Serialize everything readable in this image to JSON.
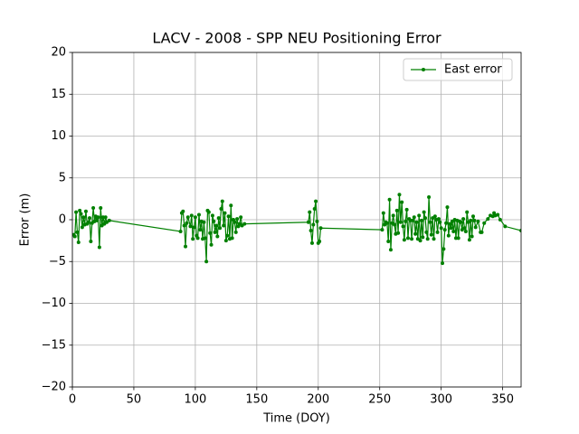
{
  "chart_data": {
    "type": "line",
    "title": "LACV - 2008 - SPP NEU Positioning Error",
    "xlabel": "Time (DOY)",
    "ylabel": "Error (m)",
    "xlim": [
      0,
      365
    ],
    "ylim": [
      -20,
      20
    ],
    "xticks": [
      0,
      50,
      100,
      150,
      200,
      250,
      300,
      350
    ],
    "yticks": [
      {
        "value": -20,
        "label": "−20"
      },
      {
        "value": -15,
        "label": "−15"
      },
      {
        "value": -10,
        "label": "−10"
      },
      {
        "value": -5,
        "label": "−5"
      },
      0,
      5,
      10,
      15,
      20
    ],
    "grid": true,
    "legend": "upper right",
    "x": [
      1,
      2,
      3,
      4,
      5,
      6,
      7,
      8,
      9,
      10,
      11,
      12,
      13,
      14,
      15,
      16,
      17,
      18,
      19,
      20,
      21,
      22,
      23,
      24,
      25,
      26,
      27,
      28,
      30,
      88,
      89,
      90,
      91,
      92,
      93,
      94,
      96,
      97,
      98,
      99,
      100,
      101,
      102,
      103,
      104,
      105,
      106,
      107,
      108,
      109,
      110,
      111,
      112,
      113,
      114,
      115,
      116,
      117,
      118,
      119,
      120,
      121,
      122,
      123,
      124,
      125,
      126,
      127,
      128,
      129,
      130,
      131,
      132,
      133,
      134,
      135,
      136,
      137,
      138,
      140,
      192,
      193,
      194,
      195,
      196,
      197,
      198,
      199,
      200,
      201,
      202,
      252,
      253,
      254,
      255,
      256,
      257,
      258,
      259,
      260,
      261,
      262,
      263,
      264,
      265,
      266,
      267,
      268,
      269,
      270,
      271,
      272,
      273,
      274,
      275,
      276,
      277,
      278,
      279,
      280,
      281,
      282,
      283,
      284,
      285,
      286,
      287,
      288,
      289,
      290,
      291,
      292,
      293,
      294,
      295,
      296,
      297,
      298,
      299,
      300,
      301,
      302,
      303,
      304,
      305,
      306,
      307,
      308,
      309,
      310,
      311,
      312,
      313,
      314,
      315,
      316,
      317,
      318,
      319,
      320,
      321,
      322,
      323,
      324,
      325,
      326,
      327,
      328,
      330,
      332,
      333,
      335,
      338,
      340,
      342,
      343,
      344,
      346,
      348,
      352,
      365
    ],
    "series": [
      {
        "name": "East error",
        "color": "#008000",
        "values": [
          -1.8,
          -2.0,
          0.9,
          -1.5,
          -2.7,
          1.1,
          0.7,
          -0.9,
          0.3,
          -0.6,
          1.0,
          -0.5,
          -0.3,
          0.2,
          -2.6,
          -0.4,
          1.4,
          -0.2,
          0.4,
          -0.1,
          0.3,
          -3.3,
          1.4,
          -0.7,
          0.3,
          -0.5,
          0.3,
          -0.3,
          -0.1,
          -1.4,
          0.8,
          1.0,
          -0.7,
          -3.2,
          -0.4,
          0.3,
          -0.8,
          0.5,
          -2.3,
          -0.9,
          0.3,
          -1.9,
          -2.2,
          0.6,
          -1.2,
          -0.2,
          -2.3,
          -0.3,
          -2.2,
          -5.0,
          1.1,
          0.9,
          -1.6,
          -3.0,
          0.5,
          -0.2,
          -1.5,
          -0.7,
          -2.0,
          0.2,
          -1.0,
          1.3,
          2.2,
          -0.7,
          0.8,
          -2.5,
          -1.9,
          0.4,
          -2.3,
          1.7,
          -2.2,
          0.0,
          -0.3,
          -1.5,
          0.1,
          -0.8,
          -0.5,
          0.3,
          -0.7,
          -0.5,
          -0.3,
          0.9,
          -1.3,
          -2.8,
          -0.6,
          1.3,
          2.2,
          -0.2,
          -2.8,
          -2.6,
          -1.0,
          -1.2,
          0.8,
          -0.6,
          -0.3,
          -0.4,
          -2.6,
          2.4,
          -3.6,
          -0.4,
          0.5,
          -0.6,
          -1.7,
          1.1,
          -1.6,
          3.0,
          -0.3,
          2.1,
          -0.8,
          -2.4,
          -0.2,
          1.2,
          -2.2,
          0.1,
          -0.1,
          -2.3,
          -0.1,
          0.3,
          -1.7,
          -0.3,
          -2.3,
          0.5,
          -2.5,
          -0.1,
          -2.1,
          0.9,
          0.2,
          -1.5,
          -2.3,
          2.7,
          -0.3,
          -1.8,
          0.2,
          -2.3,
          0.4,
          0.0,
          -1.5,
          0.1,
          -0.3,
          -1.0,
          -5.2,
          -3.5,
          -1.2,
          -0.4,
          1.5,
          -1.9,
          -0.5,
          -1.0,
          -0.2,
          -1.4,
          0.0,
          -2.2,
          -0.1,
          -2.2,
          -0.2,
          -0.3,
          -1.2,
          0.1,
          -1.0,
          -1.4,
          0.9,
          -0.3,
          -2.4,
          -0.1,
          -2.0,
          0.4,
          -0.1,
          -0.9,
          -0.2,
          -1.5,
          -1.5,
          -0.4,
          0.1,
          0.5,
          0.4,
          0.8,
          0.5,
          0.6,
          0.0,
          -0.8,
          -1.3
        ]
      }
    ]
  }
}
